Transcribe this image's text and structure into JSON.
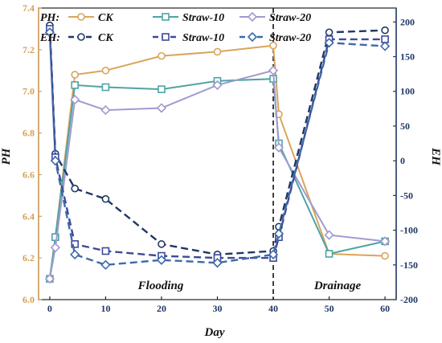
{
  "chart_data": {
    "type": "line",
    "xlabel": "Day",
    "ylabel_left": "PH",
    "ylabel_right": "EH",
    "xlim": [
      -2,
      62
    ],
    "ylim_left": [
      6.0,
      7.4
    ],
    "ylim_right": [
      -200,
      220
    ],
    "x_ticks": [
      0,
      10,
      20,
      30,
      40,
      50,
      60
    ],
    "y_ticks_left": [
      6.0,
      6.2,
      6.4,
      6.6,
      6.8,
      7.0,
      7.2,
      7.4
    ],
    "y_ticks_right": [
      -200,
      -150,
      -100,
      -50,
      0,
      50,
      100,
      150,
      200
    ],
    "y_ticks_left_labels": [
      "6.0",
      "6.2",
      "6.4",
      "6.6",
      "6.8",
      "7.0",
      "7.2",
      "7.4"
    ],
    "y_ticks_right_labels": [
      "-200",
      "-150",
      "-100",
      "-50",
      "0",
      "50",
      "100",
      "150",
      "200"
    ],
    "colors": {
      "left_axis": "#d4a056",
      "right_axis": "#1f3864",
      "ph_ck": "#d9a55a",
      "ph_straw10": "#4fa3a3",
      "ph_straw20": "#a09ad0",
      "eh_ck": "#1f3864",
      "eh_straw10": "#3d4a99",
      "eh_straw20": "#3f6aa8"
    },
    "legend": {
      "ph_label": "PH:",
      "eh_label": "EH:",
      "names": [
        "CK",
        "Straw-10",
        "Straw-20"
      ]
    },
    "annotations": {
      "left_text": "Flooding",
      "right_text": "Drainage",
      "divider_x": 40
    },
    "series": [
      {
        "name": "CK",
        "group": "PH",
        "axis": "left",
        "marker": "circle",
        "dashed": false,
        "color_key": "ph_ck",
        "x": [
          0,
          1,
          4.5,
          10,
          20,
          30,
          40,
          41,
          50,
          60
        ],
        "y": [
          6.1,
          6.3,
          7.08,
          7.1,
          7.17,
          7.19,
          7.22,
          6.89,
          6.22,
          6.21
        ]
      },
      {
        "name": "Straw-10",
        "group": "PH",
        "axis": "left",
        "marker": "square",
        "dashed": false,
        "color_key": "ph_straw10",
        "x": [
          0,
          1,
          4.5,
          10,
          20,
          30,
          40,
          41,
          50,
          60
        ],
        "y": [
          6.1,
          6.3,
          7.03,
          7.02,
          7.01,
          7.05,
          7.06,
          6.75,
          6.22,
          6.28
        ]
      },
      {
        "name": "Straw-20",
        "group": "PH",
        "axis": "left",
        "marker": "diamond",
        "dashed": false,
        "color_key": "ph_straw20",
        "x": [
          0,
          1,
          4.5,
          10,
          20,
          30,
          40,
          41,
          50,
          60
        ],
        "y": [
          6.1,
          6.25,
          6.96,
          6.91,
          6.92,
          7.03,
          7.1,
          6.73,
          6.31,
          6.28
        ]
      },
      {
        "name": "CK",
        "group": "EH",
        "axis": "right",
        "marker": "circle",
        "dashed": true,
        "color_key": "eh_ck",
        "x": [
          0,
          1,
          4.5,
          10,
          20,
          30,
          40,
          41,
          50,
          60
        ],
        "y": [
          195,
          10,
          -40,
          -55,
          -120,
          -135,
          -130,
          -95,
          185,
          188
        ]
      },
      {
        "name": "Straw-10",
        "group": "EH",
        "axis": "right",
        "marker": "square",
        "dashed": true,
        "color_key": "eh_straw10",
        "x": [
          0,
          1,
          4.5,
          10,
          20,
          30,
          40,
          41,
          50,
          60
        ],
        "y": [
          190,
          5,
          -120,
          -130,
          -137,
          -140,
          -140,
          -110,
          175,
          175
        ]
      },
      {
        "name": "Straw-20",
        "group": "EH",
        "axis": "right",
        "marker": "diamond",
        "dashed": true,
        "color_key": "eh_straw20",
        "x": [
          0,
          1,
          4.5,
          10,
          20,
          30,
          40,
          41,
          50,
          60
        ],
        "y": [
          185,
          0,
          -135,
          -150,
          -143,
          -147,
          -135,
          -105,
          170,
          165
        ]
      }
    ]
  }
}
